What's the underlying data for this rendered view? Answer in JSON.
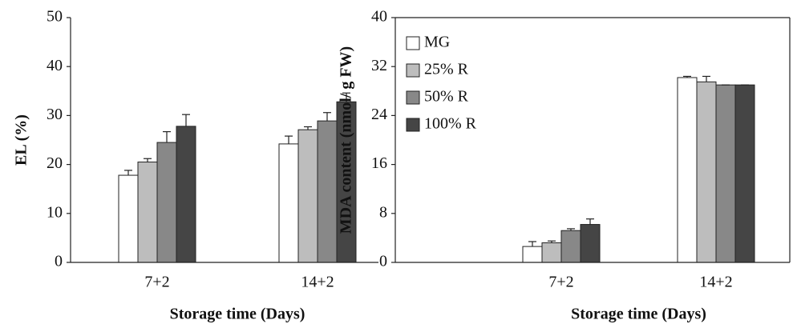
{
  "chart_data": [
    {
      "type": "bar",
      "ylabel": "EL (%)",
      "xlabel": "Storage time (Days)",
      "categories": [
        "7+2",
        "14+2"
      ],
      "series": [
        {
          "name": "MG",
          "color": "#ffffff",
          "values": [
            17.8,
            24.2
          ],
          "errors": [
            1.0,
            1.6
          ]
        },
        {
          "name": "25% R",
          "color": "#bdbdbd",
          "values": [
            20.5,
            27.1
          ],
          "errors": [
            0.7,
            0.6
          ]
        },
        {
          "name": "50% R",
          "color": "#888888",
          "values": [
            24.5,
            28.9
          ],
          "errors": [
            2.2,
            1.7
          ]
        },
        {
          "name": "100% R",
          "color": "#454545",
          "values": [
            27.8,
            32.8
          ],
          "errors": [
            2.4,
            1.8
          ]
        }
      ],
      "ylim": [
        0,
        50
      ],
      "yticks": [
        0,
        10,
        20,
        30,
        40,
        50
      ],
      "legend": false
    },
    {
      "type": "bar",
      "ylabel": "MDA content (nmol/ g FW)",
      "xlabel": "Storage time (Days)",
      "categories": [
        "7+2",
        "14+2"
      ],
      "series": [
        {
          "name": "MG",
          "color": "#ffffff",
          "values": [
            2.6,
            30.2
          ],
          "errors": [
            0.8,
            0.2
          ]
        },
        {
          "name": "25% R",
          "color": "#bdbdbd",
          "values": [
            3.2,
            29.5
          ],
          "errors": [
            0.3,
            0.9
          ]
        },
        {
          "name": "50% R",
          "color": "#888888",
          "values": [
            5.2,
            29.0
          ],
          "errors": [
            0.3,
            0.0
          ]
        },
        {
          "name": "100% R",
          "color": "#454545",
          "values": [
            6.2,
            29.0
          ],
          "errors": [
            0.9,
            0.0
          ]
        }
      ],
      "ylim": [
        0,
        40
      ],
      "yticks": [
        0,
        8,
        16,
        24,
        32,
        40
      ],
      "legend": "upper left"
    }
  ]
}
